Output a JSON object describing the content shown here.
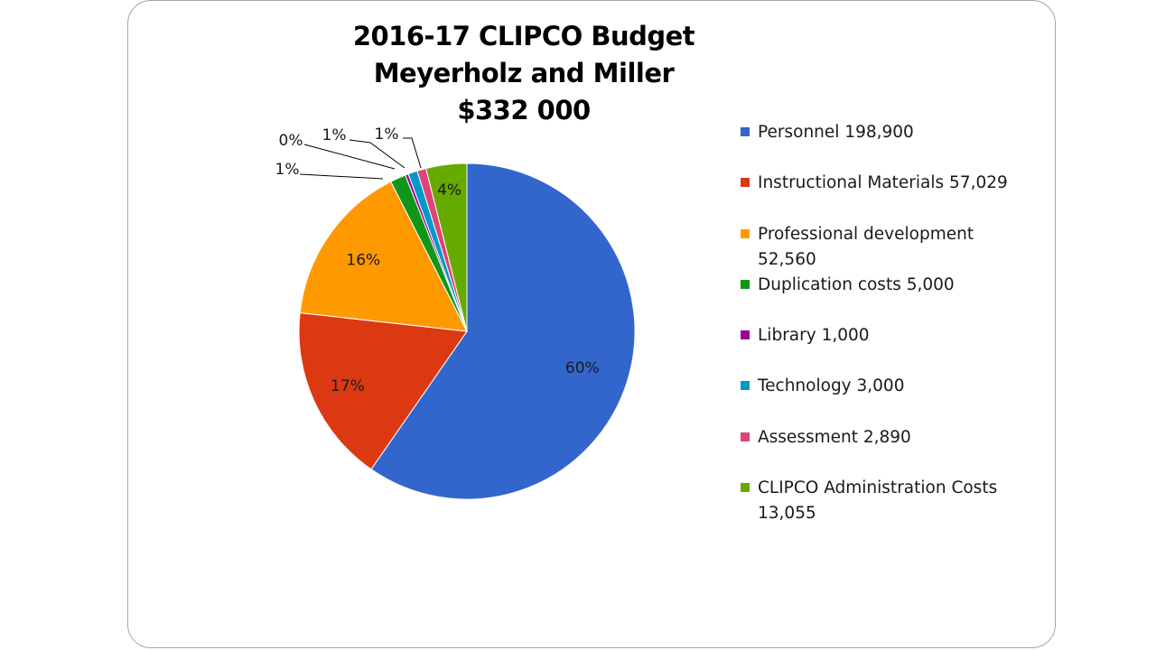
{
  "chart_data": {
    "type": "pie",
    "title": [
      "2016-17 CLIPCO Budget",
      "Meyerholz and Miller",
      "$332 000"
    ],
    "slices": [
      {
        "name": "Personnel 198,900",
        "value": 198900,
        "label": "60%",
        "color": "#3366cc"
      },
      {
        "name": "Instructional Materials 57,029",
        "value": 57029,
        "label": "17%",
        "color": "#dc3912"
      },
      {
        "name": "Professional development 52,560",
        "value": 52560,
        "label": "16%",
        "color": "#ff9900"
      },
      {
        "name": "Duplication costs 5,000",
        "value": 5000,
        "label": "1%",
        "color": "#109618"
      },
      {
        "name": "Library  1,000",
        "value": 1000,
        "label": "0%",
        "color": "#990099"
      },
      {
        "name": "Technology 3,000",
        "value": 3000,
        "label": "1%",
        "color": "#0099c6"
      },
      {
        "name": "Assessment 2,890",
        "value": 2890,
        "label": "1%",
        "color": "#dd4477"
      },
      {
        "name": "CLIPCO Administration Costs 13,055",
        "value": 13055,
        "label": "4%",
        "color": "#66aa00"
      }
    ],
    "start_angle_deg": 0,
    "direction": "clockwise",
    "legend_position": "right"
  }
}
